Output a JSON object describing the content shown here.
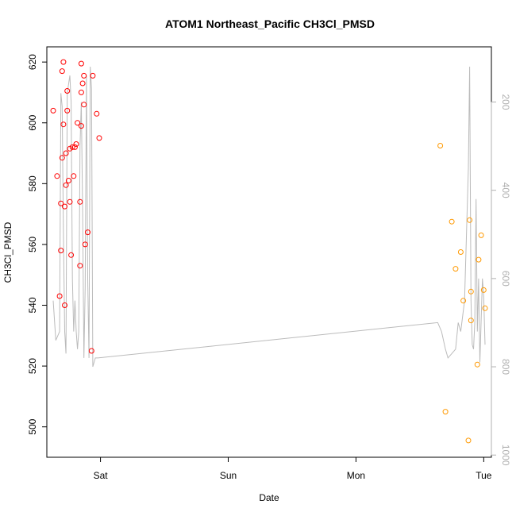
{
  "chart_data": {
    "type": "scatter",
    "title": "ATOM1 Northeast_Pacific CH3Cl_PMSD",
    "xlabel": "Date",
    "ylabel": "CH3Cl_PMSD",
    "x_ticks": [
      "Sat",
      "Sun",
      "Mon",
      "Tue"
    ],
    "xlim": [
      -0.42,
      3.06
    ],
    "ylim": [
      490,
      625
    ],
    "y_ticks": [
      500,
      520,
      540,
      560,
      580,
      600,
      620
    ],
    "y2_ticks": [
      200,
      400,
      600,
      800,
      1000
    ],
    "y2lim": [
      1005,
      75
    ],
    "y2_color": "#b0b0b0",
    "grid": false,
    "series": [
      {
        "color": "#ff0000",
        "marker": "open-circle",
        "points": [
          [
            -0.37,
            604
          ],
          [
            -0.34,
            582.5
          ],
          [
            -0.32,
            543
          ],
          [
            -0.31,
            573.5
          ],
          [
            -0.31,
            558
          ],
          [
            -0.3,
            588.5
          ],
          [
            -0.3,
            617
          ],
          [
            -0.29,
            620
          ],
          [
            -0.29,
            599.5
          ],
          [
            -0.28,
            540
          ],
          [
            -0.28,
            572.5
          ],
          [
            -0.27,
            590
          ],
          [
            -0.27,
            579.5
          ],
          [
            -0.26,
            604
          ],
          [
            -0.26,
            610.5
          ],
          [
            -0.25,
            581
          ],
          [
            -0.24,
            591.5
          ],
          [
            -0.24,
            574
          ],
          [
            -0.23,
            556.5
          ],
          [
            -0.22,
            592
          ],
          [
            -0.21,
            582.5
          ],
          [
            -0.2,
            592
          ],
          [
            -0.19,
            593
          ],
          [
            -0.18,
            600
          ],
          [
            -0.16,
            553
          ],
          [
            -0.16,
            574
          ],
          [
            -0.15,
            599
          ],
          [
            -0.15,
            610
          ],
          [
            -0.15,
            619.5
          ],
          [
            -0.14,
            613
          ],
          [
            -0.13,
            615.5
          ],
          [
            -0.13,
            606
          ],
          [
            -0.12,
            560
          ],
          [
            -0.1,
            564
          ],
          [
            -0.07,
            525
          ],
          [
            -0.06,
            615.5
          ],
          [
            -0.03,
            603
          ],
          [
            -0.01,
            595
          ]
        ]
      },
      {
        "color": "#ff9900",
        "marker": "open-circle",
        "points": [
          [
            2.66,
            592.5
          ],
          [
            2.7,
            505
          ],
          [
            2.75,
            567.5
          ],
          [
            2.78,
            552
          ],
          [
            2.82,
            557.5
          ],
          [
            2.84,
            541.5
          ],
          [
            2.88,
            495.5
          ],
          [
            2.89,
            568
          ],
          [
            2.9,
            544.5
          ],
          [
            2.9,
            535
          ],
          [
            2.95,
            520.5
          ],
          [
            2.96,
            555
          ],
          [
            2.98,
            563
          ],
          [
            3.0,
            545
          ],
          [
            3.01,
            539
          ]
        ]
      }
    ],
    "line": {
      "color": "#bbbbbb",
      "axis": "right",
      "points": [
        [
          -0.37,
          650
        ],
        [
          -0.35,
          740
        ],
        [
          -0.32,
          720
        ],
        [
          -0.31,
          180
        ],
        [
          -0.3,
          210
        ],
        [
          -0.29,
          500
        ],
        [
          -0.28,
          720
        ],
        [
          -0.27,
          770
        ],
        [
          -0.26,
          180
        ],
        [
          -0.24,
          140
        ],
        [
          -0.23,
          200
        ],
        [
          -0.22,
          600
        ],
        [
          -0.21,
          720
        ],
        [
          -0.2,
          650
        ],
        [
          -0.19,
          720
        ],
        [
          -0.18,
          760
        ],
        [
          -0.17,
          720
        ],
        [
          -0.16,
          300
        ],
        [
          -0.15,
          200
        ],
        [
          -0.14,
          450
        ],
        [
          -0.13,
          780
        ],
        [
          -0.12,
          620
        ],
        [
          -0.11,
          140
        ],
        [
          -0.1,
          600
        ],
        [
          -0.09,
          780
        ],
        [
          -0.08,
          120
        ],
        [
          -0.07,
          170
        ],
        [
          -0.06,
          800
        ],
        [
          -0.04,
          780
        ],
        [
          -0.02,
          780
        ],
        [
          2.64,
          700
        ],
        [
          2.67,
          720
        ],
        [
          2.7,
          760
        ],
        [
          2.72,
          780
        ],
        [
          2.75,
          770
        ],
        [
          2.78,
          760
        ],
        [
          2.8,
          700
        ],
        [
          2.82,
          720
        ],
        [
          2.85,
          650
        ],
        [
          2.88,
          350
        ],
        [
          2.89,
          120
        ],
        [
          2.9,
          650
        ],
        [
          2.91,
          750
        ],
        [
          2.92,
          760
        ],
        [
          2.93,
          700
        ],
        [
          2.94,
          420
        ],
        [
          2.95,
          720
        ],
        [
          2.96,
          600
        ],
        [
          2.97,
          790
        ],
        [
          2.99,
          600
        ],
        [
          3.0,
          640
        ],
        [
          3.01,
          750
        ]
      ]
    }
  }
}
